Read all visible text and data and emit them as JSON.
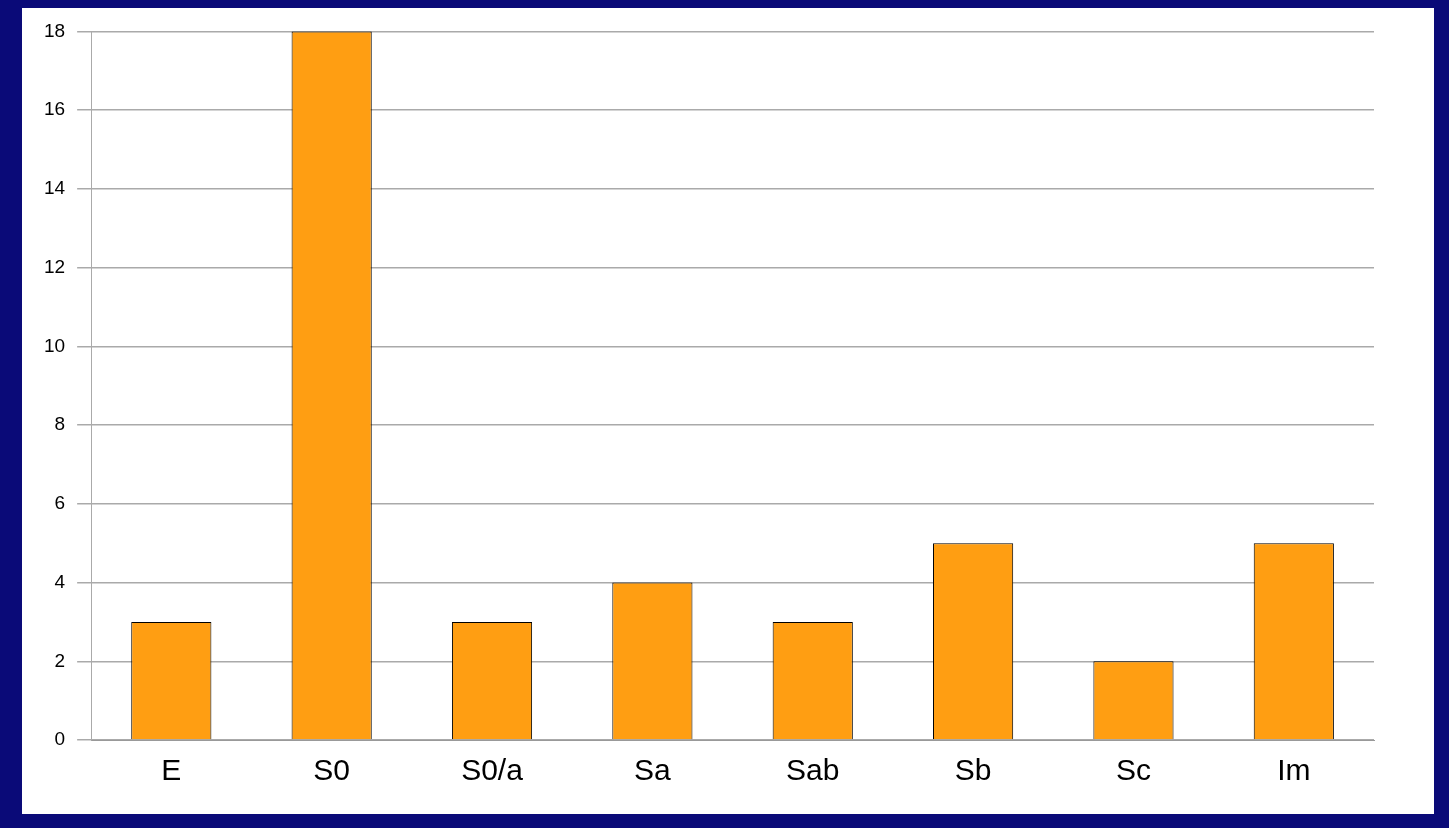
{
  "chart_data": {
    "type": "bar",
    "categories": [
      "E",
      "S0",
      "S0/a",
      "Sa",
      "Sab",
      "Sb",
      "Sc",
      "Im"
    ],
    "values": [
      3,
      18,
      3,
      4,
      3,
      5,
      2,
      5
    ],
    "color": "#ff9e12",
    "ylim": [
      0,
      18
    ],
    "yticks": [
      0,
      2,
      4,
      6,
      8,
      10,
      12,
      14,
      16,
      18
    ],
    "grid": "y",
    "legend": false
  }
}
